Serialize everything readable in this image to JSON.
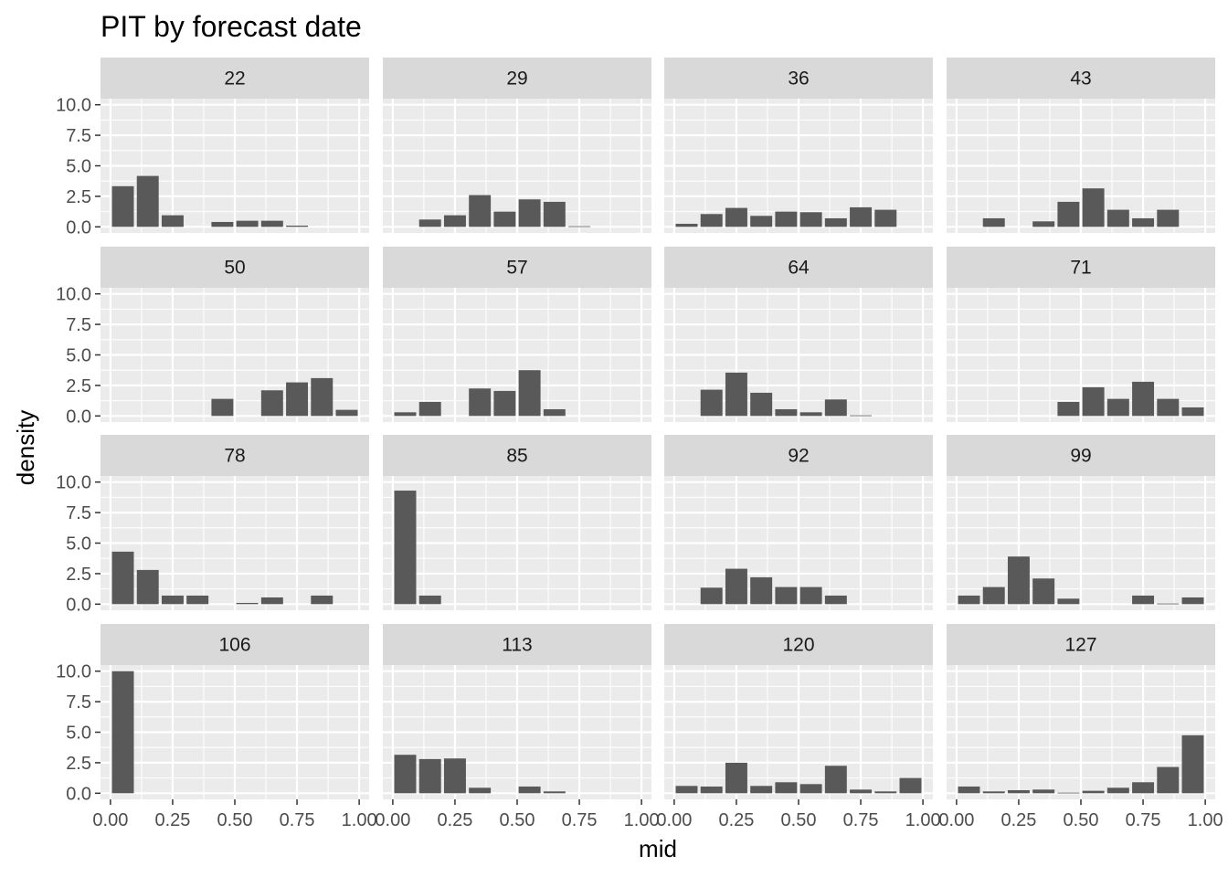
{
  "chart_data": {
    "type": "bar",
    "title": "PIT by forecast date",
    "xlabel": "mid",
    "ylabel": "density",
    "xlim": [
      -0.04,
      1.04
    ],
    "ylim": [
      -0.5,
      10.5
    ],
    "x_ticks": [
      "0.00",
      "0.25",
      "0.50",
      "0.75",
      "1.00"
    ],
    "y_ticks": [
      "0.0",
      "2.5",
      "5.0",
      "7.5",
      "10.0"
    ],
    "bin_mids": [
      0.05,
      0.15,
      0.25,
      0.35,
      0.45,
      0.55,
      0.65,
      0.75,
      0.85,
      0.95
    ],
    "grid": true,
    "colors": {
      "bar": "#595959",
      "panel_bg": "#ebebeb",
      "strip_bg": "#d9d9d9",
      "grid": "#ffffff"
    },
    "panels": [
      {
        "label": "22",
        "values": [
          3.33,
          4.17,
          0.95,
          0,
          0.4,
          0.5,
          0.5,
          0.1,
          0,
          0
        ]
      },
      {
        "label": "29",
        "values": [
          0,
          0.6,
          0.95,
          2.6,
          1.25,
          2.25,
          2.05,
          0.05,
          0,
          0
        ]
      },
      {
        "label": "36",
        "values": [
          0.25,
          1.05,
          1.55,
          0.9,
          1.25,
          1.2,
          0.7,
          1.6,
          1.4,
          0
        ]
      },
      {
        "label": "43",
        "values": [
          0,
          0.7,
          0,
          0.45,
          2.05,
          3.15,
          1.4,
          0.7,
          1.4,
          0
        ]
      },
      {
        "label": "50",
        "values": [
          0,
          0,
          0,
          0,
          1.4,
          0,
          2.1,
          2.75,
          3.1,
          0.5
        ]
      },
      {
        "label": "57",
        "values": [
          0.3,
          1.15,
          0,
          2.25,
          2.05,
          3.75,
          0.55,
          0,
          0,
          0
        ]
      },
      {
        "label": "64",
        "values": [
          0,
          2.15,
          3.55,
          1.9,
          0.55,
          0.3,
          1.35,
          0.05,
          0,
          0
        ]
      },
      {
        "label": "71",
        "values": [
          0,
          0,
          0,
          0,
          1.15,
          2.35,
          1.4,
          2.8,
          1.4,
          0.7
        ]
      },
      {
        "label": "78",
        "values": [
          4.3,
          2.8,
          0.7,
          0.7,
          0,
          0.1,
          0.55,
          0,
          0.7,
          0
        ]
      },
      {
        "label": "85",
        "values": [
          9.3,
          0.7,
          0,
          0,
          0,
          0,
          0,
          0,
          0,
          0
        ]
      },
      {
        "label": "92",
        "values": [
          0,
          1.35,
          2.9,
          2.2,
          1.4,
          1.4,
          0.7,
          0,
          0,
          0
        ]
      },
      {
        "label": "99",
        "values": [
          0.7,
          1.4,
          3.9,
          2.1,
          0.45,
          0,
          0,
          0.7,
          0.05,
          0.55
        ]
      },
      {
        "label": "106",
        "values": [
          10.0,
          0,
          0,
          0,
          0,
          0,
          0,
          0,
          0,
          0
        ]
      },
      {
        "label": "113",
        "values": [
          3.15,
          2.8,
          2.85,
          0.45,
          0,
          0.55,
          0.15,
          0,
          0,
          0
        ]
      },
      {
        "label": "120",
        "values": [
          0.6,
          0.55,
          2.5,
          0.6,
          0.9,
          0.75,
          2.25,
          0.3,
          0.15,
          1.25
        ]
      },
      {
        "label": "127",
        "values": [
          0.55,
          0.15,
          0.25,
          0.3,
          0.05,
          0.2,
          0.45,
          0.9,
          2.15,
          4.75
        ]
      }
    ]
  }
}
